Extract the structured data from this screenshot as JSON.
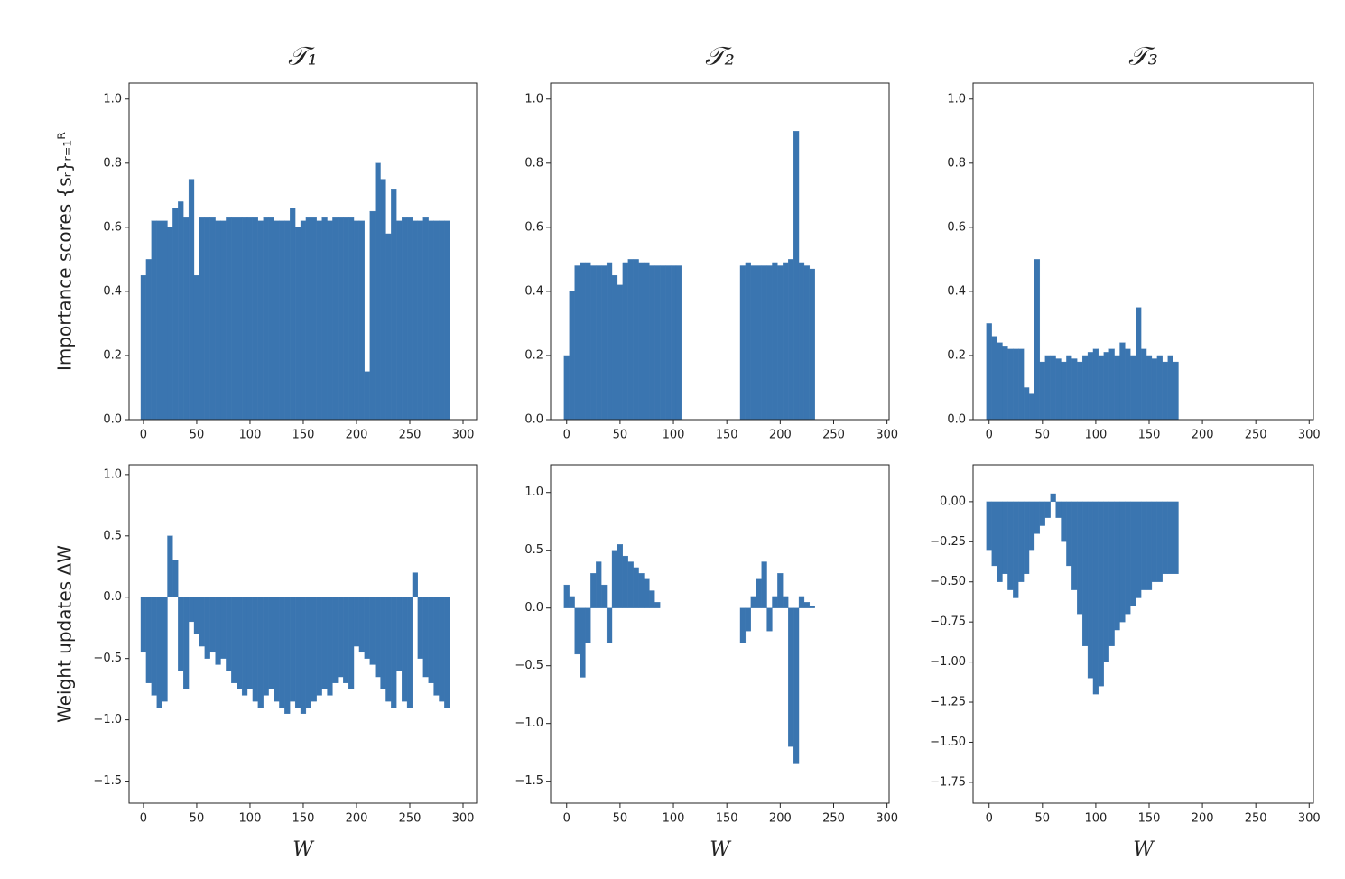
{
  "chart_data": [
    {
      "type": "bar",
      "title": "𝒯₁",
      "ylabel": "Importance scores {sᵣ}ᵣ₌₁ᴿ",
      "color": "#3a75b0",
      "x": [
        0,
        5,
        10,
        15,
        20,
        25,
        30,
        35,
        40,
        45,
        50,
        55,
        60,
        65,
        70,
        75,
        80,
        85,
        90,
        95,
        100,
        105,
        110,
        115,
        120,
        125,
        130,
        135,
        140,
        145,
        150,
        155,
        160,
        165,
        170,
        175,
        180,
        185,
        190,
        195,
        200,
        205,
        210,
        215,
        220,
        225,
        230,
        235,
        240,
        245,
        250,
        255,
        260,
        265,
        270,
        275,
        280,
        285
      ],
      "values": [
        0.45,
        0.5,
        0.62,
        0.62,
        0.62,
        0.6,
        0.66,
        0.68,
        0.63,
        0.75,
        0.45,
        0.63,
        0.63,
        0.63,
        0.62,
        0.62,
        0.63,
        0.63,
        0.63,
        0.63,
        0.63,
        0.63,
        0.62,
        0.63,
        0.63,
        0.62,
        0.62,
        0.62,
        0.66,
        0.6,
        0.62,
        0.63,
        0.63,
        0.62,
        0.63,
        0.62,
        0.63,
        0.63,
        0.63,
        0.63,
        0.62,
        0.62,
        0.15,
        0.65,
        0.8,
        0.75,
        0.58,
        0.72,
        0.62,
        0.63,
        0.63,
        0.62,
        0.62,
        0.63,
        0.62,
        0.62,
        0.62,
        0.62
      ],
      "xlim": [
        -13.5,
        312.7
      ],
      "xticks": [
        0,
        50,
        100,
        150,
        200,
        250,
        300
      ],
      "ylim": [
        0,
        1.05
      ],
      "yticks": [
        {
          "value": 0,
          "label": "0.0"
        },
        0.2,
        0.4,
        0.6,
        0.8,
        {
          "value": 1,
          "label": "1.0"
        }
      ]
    },
    {
      "type": "bar",
      "title": "𝒯₂",
      "color": "#3a75b0",
      "x": [
        0,
        5,
        10,
        15,
        20,
        25,
        30,
        35,
        40,
        45,
        50,
        55,
        60,
        65,
        70,
        75,
        80,
        85,
        90,
        95,
        100,
        105,
        110,
        115,
        120,
        125,
        130,
        135,
        140,
        145,
        150,
        155,
        160,
        165,
        170,
        175,
        180,
        185,
        190,
        195,
        200,
        205,
        210,
        215,
        220,
        225,
        230
      ],
      "values": [
        0.2,
        0.4,
        0.48,
        0.49,
        0.49,
        0.48,
        0.48,
        0.48,
        0.49,
        0.45,
        0.42,
        0.49,
        0.5,
        0.5,
        0.49,
        0.49,
        0.48,
        0.48,
        0.48,
        0.48,
        0.48,
        0.48,
        null,
        null,
        null,
        null,
        null,
        null,
        null,
        null,
        null,
        null,
        null,
        0.48,
        0.49,
        0.48,
        0.48,
        0.48,
        0.48,
        0.49,
        0.48,
        0.49,
        0.5,
        0.9,
        0.49,
        0.48,
        0.47
      ],
      "xlim": [
        -15,
        302
      ],
      "xticks": [
        0,
        50,
        100,
        150,
        200,
        250,
        300
      ],
      "ylim": [
        0,
        1.05
      ],
      "yticks": [
        {
          "value": 0,
          "label": "0.0"
        },
        0.2,
        0.4,
        0.6,
        0.8,
        {
          "value": 1,
          "label": "1.0"
        }
      ]
    },
    {
      "type": "bar",
      "title": "𝒯₃",
      "color": "#3a75b0",
      "x": [
        0,
        5,
        10,
        15,
        20,
        25,
        30,
        35,
        40,
        45,
        50,
        55,
        60,
        65,
        70,
        75,
        80,
        85,
        90,
        95,
        100,
        105,
        110,
        115,
        120,
        125,
        130,
        135,
        140,
        145,
        150,
        155,
        160,
        165,
        170,
        175
      ],
      "values": [
        0.3,
        0.26,
        0.24,
        0.23,
        0.22,
        0.22,
        0.22,
        0.1,
        0.08,
        0.5,
        0.18,
        0.2,
        0.2,
        0.19,
        0.18,
        0.2,
        0.19,
        0.18,
        0.2,
        0.21,
        0.22,
        0.2,
        0.21,
        0.22,
        0.2,
        0.24,
        0.22,
        0.2,
        0.35,
        0.22,
        0.2,
        0.19,
        0.2,
        0.18,
        0.2,
        0.18
      ],
      "xlim": [
        -15,
        304
      ],
      "xticks": [
        0,
        50,
        100,
        150,
        200,
        250,
        300
      ],
      "ylim": [
        0,
        1.05
      ],
      "yticks": [
        {
          "value": 0,
          "label": "0.0"
        },
        0.2,
        0.4,
        0.6,
        0.8,
        {
          "value": 1,
          "label": "1.0"
        }
      ]
    },
    {
      "type": "bar",
      "ylabel": "Weight updates ΔW",
      "xlabel": "W",
      "color": "#3a75b0",
      "x": [
        0,
        5,
        10,
        15,
        20,
        25,
        30,
        35,
        40,
        45,
        50,
        55,
        60,
        65,
        70,
        75,
        80,
        85,
        90,
        95,
        100,
        105,
        110,
        115,
        120,
        125,
        130,
        135,
        140,
        145,
        150,
        155,
        160,
        165,
        170,
        175,
        180,
        185,
        190,
        195,
        200,
        205,
        210,
        215,
        220,
        225,
        230,
        235,
        240,
        245,
        250,
        255,
        260,
        265,
        270,
        275,
        280,
        285
      ],
      "values": [
        -0.45,
        -0.7,
        -0.8,
        -0.9,
        -0.85,
        0.5,
        0.3,
        -0.6,
        -0.75,
        -0.2,
        -0.3,
        -0.4,
        -0.5,
        -0.45,
        -0.55,
        -0.5,
        -0.6,
        -0.7,
        -0.75,
        -0.8,
        -0.75,
        -0.85,
        -0.9,
        -0.8,
        -0.75,
        -0.85,
        -0.9,
        -0.95,
        -0.85,
        -0.9,
        -0.95,
        -0.9,
        -0.85,
        -0.8,
        -0.75,
        -0.8,
        -0.7,
        -0.65,
        -0.7,
        -0.75,
        -0.4,
        -0.45,
        -0.5,
        -0.55,
        -0.65,
        -0.75,
        -0.85,
        -0.9,
        -0.6,
        -0.85,
        -0.9,
        0.2,
        -0.5,
        -0.65,
        -0.7,
        -0.8,
        -0.85,
        -0.9
      ],
      "xlim": [
        -13.5,
        312.7
      ],
      "xticks": [
        0,
        50,
        100,
        150,
        200,
        250,
        300
      ],
      "ylim": [
        -1.68,
        1.08
      ],
      "yticks": [
        {
          "value": -1.5,
          "label": "−1.5"
        },
        {
          "value": -1,
          "label": "−1.0"
        },
        {
          "value": -0.5,
          "label": "−0.5"
        },
        {
          "value": 0,
          "label": "0.0"
        },
        0.5,
        {
          "value": 1,
          "label": "1.0"
        }
      ]
    },
    {
      "type": "bar",
      "xlabel": "W",
      "color": "#3a75b0",
      "x": [
        0,
        5,
        10,
        15,
        20,
        25,
        30,
        35,
        40,
        45,
        50,
        55,
        60,
        65,
        70,
        75,
        80,
        85,
        90,
        95,
        100,
        105,
        110,
        115,
        120,
        125,
        130,
        135,
        140,
        145,
        150,
        155,
        160,
        165,
        170,
        175,
        180,
        185,
        190,
        195,
        200,
        205,
        210,
        215,
        220,
        225,
        230
      ],
      "values": [
        0.2,
        0.1,
        -0.4,
        -0.6,
        -0.3,
        0.3,
        0.4,
        0.2,
        -0.3,
        0.5,
        0.55,
        0.45,
        0.4,
        0.35,
        0.3,
        0.25,
        0.15,
        0.05,
        null,
        null,
        null,
        null,
        null,
        null,
        null,
        null,
        null,
        null,
        null,
        null,
        null,
        null,
        null,
        -0.3,
        -0.2,
        0.1,
        0.25,
        0.4,
        -0.2,
        0.1,
        0.3,
        0.1,
        -1.2,
        -1.35,
        0.1,
        0.05,
        0.02
      ],
      "xlim": [
        -15,
        302
      ],
      "xticks": [
        0,
        50,
        100,
        150,
        200,
        250,
        300
      ],
      "ylim": [
        -1.69,
        1.24
      ],
      "yticks": [
        {
          "value": -1.5,
          "label": "−1.5"
        },
        {
          "value": -1,
          "label": "−1.0"
        },
        {
          "value": -0.5,
          "label": "−0.5"
        },
        {
          "value": 0,
          "label": "0.0"
        },
        0.5,
        {
          "value": 1,
          "label": "1.0"
        }
      ]
    },
    {
      "type": "bar",
      "xlabel": "W",
      "color": "#3a75b0",
      "x": [
        0,
        5,
        10,
        15,
        20,
        25,
        30,
        35,
        40,
        45,
        50,
        55,
        60,
        65,
        70,
        75,
        80,
        85,
        90,
        95,
        100,
        105,
        110,
        115,
        120,
        125,
        130,
        135,
        140,
        145,
        150,
        155,
        160,
        165,
        170,
        175
      ],
      "values": [
        -0.3,
        -0.4,
        -0.5,
        -0.45,
        -0.55,
        -0.6,
        -0.5,
        -0.45,
        -0.3,
        -0.2,
        -0.15,
        -0.1,
        0.05,
        -0.1,
        -0.25,
        -0.4,
        -0.55,
        -0.7,
        -0.9,
        -1.1,
        -1.2,
        -1.15,
        -1.0,
        -0.9,
        -0.8,
        -0.75,
        -0.7,
        -0.65,
        -0.6,
        -0.55,
        -0.55,
        -0.5,
        -0.5,
        -0.45,
        -0.45,
        -0.45
      ],
      "xlim": [
        -15,
        304
      ],
      "xticks": [
        0,
        50,
        100,
        150,
        200,
        250,
        300
      ],
      "ylim": [
        -1.88,
        0.23
      ],
      "yticks": [
        {
          "value": -1.75,
          "label": "−1.75"
        },
        {
          "value": -1.5,
          "label": "−1.50"
        },
        {
          "value": -1.25,
          "label": "−1.25"
        },
        {
          "value": -1,
          "label": "−1.00"
        },
        {
          "value": -0.75,
          "label": "−0.75"
        },
        {
          "value": -0.5,
          "label": "−0.50"
        },
        {
          "value": -0.25,
          "label": "−0.25"
        },
        {
          "value": 0,
          "label": "0.00"
        }
      ]
    }
  ]
}
